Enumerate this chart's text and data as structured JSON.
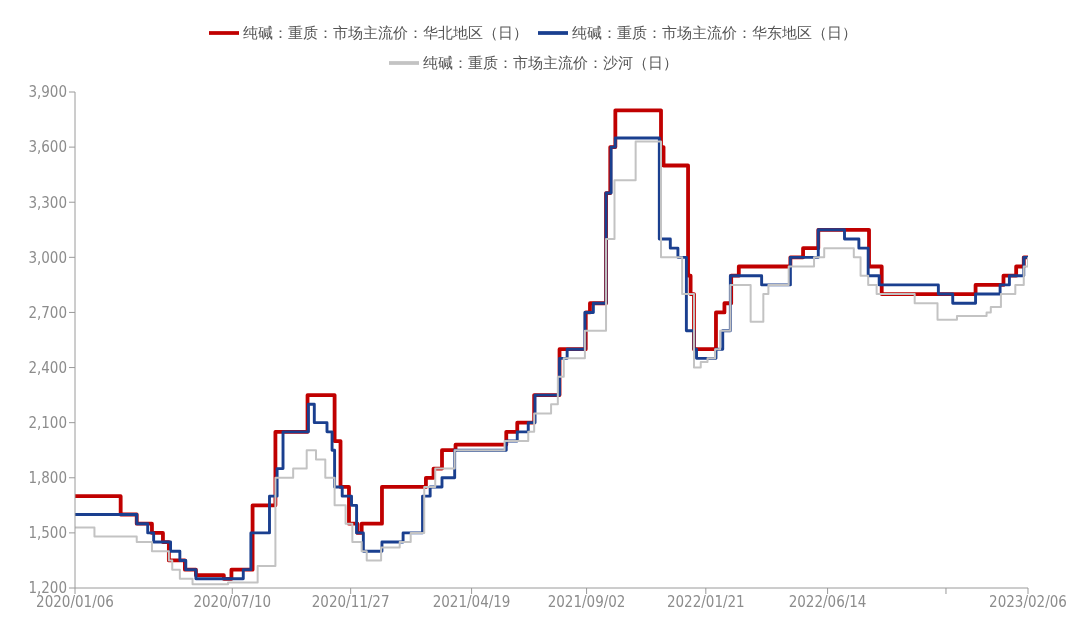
{
  "chart_data": {
    "type": "step",
    "xlim": [
      "2020-01-06",
      "2023-02-06"
    ],
    "xticks": [
      {
        "value": "2020-01-06",
        "label": "2020/01/06"
      },
      {
        "value": "2020-07-10",
        "label": "2020/07/10"
      },
      {
        "value": "2020-11-27",
        "label": "2020/11/27"
      },
      {
        "value": "2021-04-19",
        "label": "2021/04/19"
      },
      {
        "value": "2021-09-02",
        "label": "2021/09/02"
      },
      {
        "value": "2022-01-21",
        "label": "2022/01/21"
      },
      {
        "value": "2022-06-14",
        "label": "2022/06/14"
      },
      {
        "value": "2022-11-01",
        "label": null
      },
      {
        "value": "2023-02-06",
        "label": "2023/02/06"
      }
    ],
    "ylim": [
      1200,
      3900
    ],
    "yticks": [
      {
        "value": 1200,
        "label": "1,200"
      },
      {
        "value": 1500,
        "label": "1,500"
      },
      {
        "value": 1800,
        "label": "1,800"
      },
      {
        "value": 2100,
        "label": "2,100"
      },
      {
        "value": 2400,
        "label": "2,400"
      },
      {
        "value": 2700,
        "label": "2,700"
      },
      {
        "value": 3000,
        "label": "3,000"
      },
      {
        "value": 3300,
        "label": "3,300"
      },
      {
        "value": 3600,
        "label": "3,600"
      },
      {
        "value": 3900,
        "label": "3,900"
      }
    ],
    "grid": false,
    "legend": "top",
    "marker": "none",
    "line_style": "solid",
    "series": [
      {
        "name": "纯碱：重质：市场主流价：华北地区（日）",
        "color": "#c00000",
        "x": [
          "2020-01-06",
          "2020-02-29",
          "2020-03-19",
          "2020-04-06",
          "2020-04-19",
          "2020-04-26",
          "2020-05-15",
          "2020-05-28",
          "2020-06-30",
          "2020-07-09",
          "2020-08-03",
          "2020-08-30",
          "2020-10-07",
          "2020-11-08",
          "2020-11-15",
          "2020-11-25",
          "2020-12-05",
          "2020-12-10",
          "2021-01-03",
          "2021-02-24",
          "2021-03-05",
          "2021-03-15",
          "2021-03-31",
          "2021-05-30",
          "2021-06-12",
          "2021-07-02",
          "2021-08-01",
          "2021-09-01",
          "2021-09-06",
          "2021-09-25",
          "2021-09-30",
          "2021-10-06",
          "2021-11-29",
          "2021-12-02",
          "2021-12-31",
          "2022-01-03",
          "2022-01-07",
          "2022-02-02",
          "2022-02-12",
          "2022-02-20",
          "2022-03-01",
          "2022-05-01",
          "2022-05-16",
          "2022-06-03",
          "2022-08-02",
          "2022-08-17",
          "2022-12-06",
          "2023-01-08",
          "2023-01-23",
          "2023-02-01",
          "2023-02-06"
        ],
        "values": [
          1700,
          1600,
          1550,
          1500,
          1450,
          1350,
          1300,
          1270,
          1250,
          1300,
          1650,
          2050,
          2250,
          2000,
          1750,
          1550,
          1500,
          1550,
          1750,
          1800,
          1850,
          1950,
          1980,
          2050,
          2100,
          2250,
          2500,
          2700,
          2750,
          3350,
          3600,
          3800,
          3600,
          3500,
          2900,
          2800,
          2500,
          2700,
          2750,
          2900,
          2950,
          3000,
          3050,
          3150,
          2950,
          2800,
          2850,
          2900,
          2950,
          3000,
          3000
        ]
      },
      {
        "name": "纯碱：重质：市场主流价：华东地区（日）",
        "color": "#1a3f8f",
        "x": [
          "2020-01-06",
          "2020-03-19",
          "2020-04-01",
          "2020-04-08",
          "2020-04-28",
          "2020-05-09",
          "2020-05-16",
          "2020-05-28",
          "2020-07-23",
          "2020-08-01",
          "2020-08-23",
          "2020-09-01",
          "2020-09-08",
          "2020-10-08",
          "2020-10-15",
          "2020-10-30",
          "2020-11-05",
          "2020-11-08",
          "2020-11-17",
          "2020-11-28",
          "2020-12-04",
          "2020-12-12",
          "2021-01-03",
          "2021-01-28",
          "2021-02-20",
          "2021-03-01",
          "2021-03-15",
          "2021-03-30",
          "2021-05-30",
          "2021-06-12",
          "2021-06-25",
          "2021-07-03",
          "2021-08-01",
          "2021-08-10",
          "2021-08-31",
          "2021-09-10",
          "2021-09-25",
          "2021-10-01",
          "2021-10-06",
          "2021-11-27",
          "2021-12-10",
          "2021-12-19",
          "2021-12-29",
          "2022-01-07",
          "2022-01-10",
          "2022-02-02",
          "2022-02-10",
          "2022-02-19",
          "2022-03-28",
          "2022-05-01",
          "2022-06-03",
          "2022-07-04",
          "2022-07-21",
          "2022-08-01",
          "2022-08-14",
          "2022-10-23",
          "2022-11-09",
          "2022-12-06",
          "2023-01-04",
          "2023-01-15",
          "2023-02-01",
          "2023-02-06"
        ],
        "values": [
          1600,
          1550,
          1500,
          1450,
          1400,
          1350,
          1300,
          1250,
          1300,
          1500,
          1700,
          1850,
          2050,
          2200,
          2100,
          2050,
          1950,
          1750,
          1700,
          1650,
          1500,
          1400,
          1450,
          1500,
          1700,
          1750,
          1800,
          1950,
          2000,
          2050,
          2100,
          2250,
          2450,
          2500,
          2700,
          2750,
          3350,
          3600,
          3650,
          3100,
          3050,
          3000,
          2600,
          2500,
          2450,
          2500,
          2600,
          2900,
          2850,
          3000,
          3150,
          3100,
          3050,
          2900,
          2850,
          2800,
          2750,
          2800,
          2850,
          2900,
          3000,
          3000
        ]
      },
      {
        "name": "纯碱：重质：市场主流价：沙河（日）",
        "color": "#c3c3c3",
        "x": [
          "2020-01-06",
          "2020-01-29",
          "2020-03-19",
          "2020-04-06",
          "2020-04-26",
          "2020-04-30",
          "2020-05-09",
          "2020-05-24",
          "2020-07-05",
          "2020-08-09",
          "2020-08-30",
          "2020-09-20",
          "2020-10-06",
          "2020-10-17",
          "2020-10-28",
          "2020-11-08",
          "2020-11-21",
          "2020-11-29",
          "2020-12-10",
          "2020-12-16",
          "2021-01-02",
          "2021-01-24",
          "2021-02-06",
          "2021-02-22",
          "2021-03-07",
          "2021-03-30",
          "2021-05-28",
          "2021-06-25",
          "2021-07-02",
          "2021-07-22",
          "2021-07-30",
          "2021-08-06",
          "2021-08-31",
          "2021-09-25",
          "2021-10-05",
          "2021-10-30",
          "2021-11-29",
          "2021-12-24",
          "2022-01-07",
          "2022-01-15",
          "2022-01-23",
          "2022-02-01",
          "2022-02-07",
          "2022-02-19",
          "2022-03-15",
          "2022-03-30",
          "2022-04-05",
          "2022-04-29",
          "2022-05-29",
          "2022-06-10",
          "2022-07-15",
          "2022-07-23",
          "2022-08-01",
          "2022-08-11",
          "2022-09-25",
          "2022-10-22",
          "2022-11-14",
          "2022-12-19",
          "2022-12-24",
          "2023-01-05",
          "2023-01-22",
          "2023-02-01",
          "2023-02-06"
        ],
        "values": [
          1530,
          1480,
          1450,
          1400,
          1350,
          1300,
          1250,
          1220,
          1230,
          1320,
          1800,
          1850,
          1950,
          1900,
          1800,
          1650,
          1550,
          1450,
          1400,
          1350,
          1420,
          1450,
          1500,
          1750,
          1850,
          1950,
          2000,
          2050,
          2150,
          2200,
          2350,
          2450,
          2600,
          3100,
          3420,
          3630,
          3000,
          2800,
          2400,
          2430,
          2450,
          2500,
          2600,
          2850,
          2650,
          2800,
          2850,
          2950,
          3000,
          3050,
          3000,
          2900,
          2850,
          2800,
          2750,
          2660,
          2680,
          2700,
          2730,
          2800,
          2850,
          2950,
          3000
        ]
      }
    ]
  }
}
